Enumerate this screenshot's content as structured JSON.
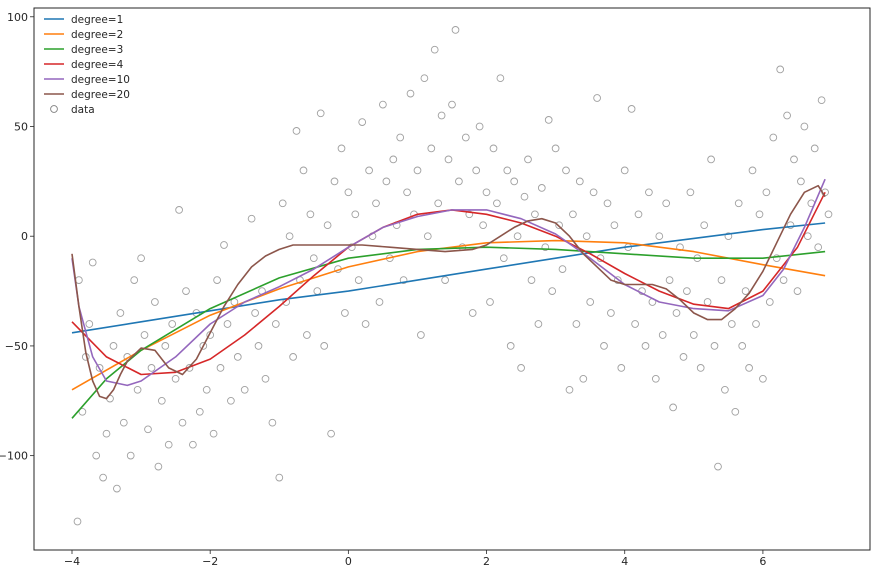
{
  "chart_data": {
    "type": "line",
    "title": "",
    "xlabel": "",
    "ylabel": "",
    "xlim": [
      -4.55,
      7.55
    ],
    "ylim": [
      -143,
      104
    ],
    "x_ticks": [
      -4,
      -2,
      0,
      2,
      4,
      6
    ],
    "y_ticks": [
      -100,
      -50,
      0,
      50,
      100
    ],
    "grid": false,
    "legend_position": "top-left",
    "series": [
      {
        "name": "degree=1",
        "color": "#1f77b4",
        "x": [
          -4,
          -3,
          -2,
          -1,
          0,
          1,
          2,
          3,
          4,
          5,
          6,
          6.9
        ],
        "y": [
          -44,
          -39,
          -34,
          -29,
          -25,
          -20,
          -15,
          -10,
          -5,
          -1,
          3,
          6
        ]
      },
      {
        "name": "degree=2",
        "color": "#ff7f0e",
        "x": [
          -4,
          -3,
          -2,
          -1,
          0,
          1,
          2,
          3,
          4,
          5,
          6,
          6.9
        ],
        "y": [
          -70,
          -52,
          -36,
          -24,
          -14,
          -7,
          -3,
          -2,
          -3,
          -7,
          -13,
          -18
        ]
      },
      {
        "name": "degree=3",
        "color": "#2ca02c",
        "x": [
          -4,
          -3.5,
          -3,
          -2,
          -1,
          0,
          1,
          2,
          3,
          4,
          5,
          6,
          6.9
        ],
        "y": [
          -83,
          -65,
          -52,
          -33,
          -19,
          -10,
          -6,
          -5,
          -6,
          -8,
          -10,
          -10,
          -7
        ]
      },
      {
        "name": "degree=4",
        "color": "#d62728",
        "x": [
          -4,
          -3.5,
          -3,
          -2.5,
          -2,
          -1.5,
          -1,
          -0.5,
          0,
          0.5,
          1,
          1.5,
          2,
          2.5,
          3,
          3.5,
          4,
          4.5,
          5,
          5.5,
          6,
          6.5,
          6.9
        ],
        "y": [
          -39,
          -55,
          -63,
          -62,
          -56,
          -45,
          -32,
          -18,
          -5,
          4,
          10,
          12,
          10,
          6,
          0,
          -8,
          -17,
          -25,
          -31,
          -33,
          -25,
          -5,
          20
        ]
      },
      {
        "name": "degree=10",
        "color": "#9467bd",
        "x": [
          -4,
          -3.9,
          -3.7,
          -3.5,
          -3.2,
          -3,
          -2.5,
          -2,
          -1.5,
          -1,
          -0.5,
          0,
          0.5,
          1,
          1.5,
          2,
          2.5,
          3,
          3.5,
          4,
          4.5,
          5,
          5.5,
          6,
          6.3,
          6.6,
          6.9
        ],
        "y": [
          -10,
          -32,
          -55,
          -66,
          -68,
          -66,
          -55,
          -40,
          -30,
          -23,
          -15,
          -5,
          4,
          9,
          12,
          12,
          8,
          1,
          -10,
          -22,
          -30,
          -33,
          -34,
          -27,
          -15,
          4,
          26
        ]
      },
      {
        "name": "degree=20",
        "color": "#8c564b",
        "x": [
          -4,
          -3.9,
          -3.8,
          -3.7,
          -3.6,
          -3.5,
          -3.4,
          -3.3,
          -3.2,
          -3.0,
          -2.8,
          -2.6,
          -2.4,
          -2.2,
          -2.0,
          -1.8,
          -1.6,
          -1.4,
          -1.2,
          -1.0,
          -0.8,
          -0.5,
          -0.2,
          0.2,
          0.6,
          1.0,
          1.4,
          1.8,
          2.0,
          2.2,
          2.4,
          2.6,
          2.8,
          3.0,
          3.2,
          3.4,
          3.6,
          3.8,
          4.0,
          4.2,
          4.4,
          4.6,
          4.8,
          5.0,
          5.2,
          5.4,
          5.6,
          5.8,
          6.0,
          6.2,
          6.4,
          6.6,
          6.8,
          6.9
        ],
        "y": [
          -8,
          -32,
          -53,
          -66,
          -73,
          -74,
          -70,
          -63,
          -57,
          -51,
          -52,
          -60,
          -63,
          -56,
          -44,
          -32,
          -22,
          -14,
          -9,
          -6,
          -4,
          -4,
          -4,
          -4,
          -5,
          -6,
          -7,
          -6,
          -4,
          0,
          4,
          7,
          8,
          6,
          0,
          -8,
          -14,
          -20,
          -22,
          -22,
          -22,
          -24,
          -29,
          -35,
          -38,
          -38,
          -33,
          -26,
          -16,
          -3,
          10,
          20,
          23,
          18
        ]
      }
    ],
    "scatter": {
      "name": "data",
      "color": "#808080",
      "points": [
        [
          -3.92,
          -130
        ],
        [
          -3.85,
          -80
        ],
        [
          -3.8,
          -55
        ],
        [
          -3.9,
          -20
        ],
        [
          -3.75,
          -40
        ],
        [
          -3.7,
          -12
        ],
        [
          -3.65,
          -100
        ],
        [
          -3.6,
          -60
        ],
        [
          -3.55,
          -110
        ],
        [
          -3.5,
          -90
        ],
        [
          -3.45,
          -74
        ],
        [
          -3.4,
          -50
        ],
        [
          -3.35,
          -115
        ],
        [
          -3.3,
          -35
        ],
        [
          -3.25,
          -85
        ],
        [
          -3.2,
          -55
        ],
        [
          -3.15,
          -100
        ],
        [
          -3.1,
          -20
        ],
        [
          -3.05,
          -70
        ],
        [
          -3.0,
          -10
        ],
        [
          -2.95,
          -45
        ],
        [
          -2.9,
          -88
        ],
        [
          -2.85,
          -60
        ],
        [
          -2.8,
          -30
        ],
        [
          -2.75,
          -105
        ],
        [
          -2.7,
          -75
        ],
        [
          -2.65,
          -50
        ],
        [
          -2.6,
          -95
        ],
        [
          -2.55,
          -40
        ],
        [
          -2.5,
          -65
        ],
        [
          -2.45,
          12
        ],
        [
          -2.4,
          -85
        ],
        [
          -2.35,
          -25
        ],
        [
          -2.3,
          -60
        ],
        [
          -2.25,
          -95
        ],
        [
          -2.2,
          -35
        ],
        [
          -2.15,
          -80
        ],
        [
          -2.1,
          -50
        ],
        [
          -2.05,
          -70
        ],
        [
          -2.0,
          -45
        ],
        [
          -1.95,
          -90
        ],
        [
          -1.9,
          -20
        ],
        [
          -1.85,
          -60
        ],
        [
          -1.8,
          -4
        ],
        [
          -1.75,
          -40
        ],
        [
          -1.7,
          -75
        ],
        [
          -1.65,
          -30
        ],
        [
          -1.6,
          -55
        ],
        [
          -1.5,
          -70
        ],
        [
          -1.4,
          8
        ],
        [
          -1.35,
          -35
        ],
        [
          -1.3,
          -50
        ],
        [
          -1.25,
          -25
        ],
        [
          -1.2,
          -65
        ],
        [
          -1.1,
          -85
        ],
        [
          -1.05,
          -40
        ],
        [
          -1.0,
          -110
        ],
        [
          -0.95,
          15
        ],
        [
          -0.9,
          -30
        ],
        [
          -0.85,
          0
        ],
        [
          -0.8,
          -55
        ],
        [
          -0.75,
          48
        ],
        [
          -0.7,
          -20
        ],
        [
          -0.65,
          30
        ],
        [
          -0.6,
          -45
        ],
        [
          -0.55,
          10
        ],
        [
          -0.5,
          -10
        ],
        [
          -0.45,
          -25
        ],
        [
          -0.4,
          56
        ],
        [
          -0.35,
          -50
        ],
        [
          -0.3,
          5
        ],
        [
          -0.25,
          -90
        ],
        [
          -0.2,
          25
        ],
        [
          -0.15,
          -15
        ],
        [
          -0.1,
          40
        ],
        [
          -0.05,
          -35
        ],
        [
          0.0,
          20
        ],
        [
          0.05,
          -5
        ],
        [
          0.1,
          10
        ],
        [
          0.15,
          -20
        ],
        [
          0.2,
          52
        ],
        [
          0.25,
          -40
        ],
        [
          0.3,
          30
        ],
        [
          0.35,
          0
        ],
        [
          0.4,
          15
        ],
        [
          0.45,
          -30
        ],
        [
          0.5,
          60
        ],
        [
          0.55,
          25
        ],
        [
          0.6,
          -10
        ],
        [
          0.65,
          35
        ],
        [
          0.7,
          5
        ],
        [
          0.75,
          45
        ],
        [
          0.8,
          -20
        ],
        [
          0.85,
          20
        ],
        [
          0.9,
          65
        ],
        [
          0.95,
          10
        ],
        [
          1.0,
          30
        ],
        [
          1.05,
          -45
        ],
        [
          1.1,
          72
        ],
        [
          1.15,
          0
        ],
        [
          1.2,
          40
        ],
        [
          1.25,
          85
        ],
        [
          1.3,
          15
        ],
        [
          1.35,
          55
        ],
        [
          1.4,
          -20
        ],
        [
          1.45,
          35
        ],
        [
          1.5,
          60
        ],
        [
          1.55,
          94
        ],
        [
          1.6,
          25
        ],
        [
          1.65,
          -5
        ],
        [
          1.7,
          45
        ],
        [
          1.75,
          10
        ],
        [
          1.8,
          -35
        ],
        [
          1.85,
          30
        ],
        [
          1.9,
          50
        ],
        [
          1.95,
          5
        ],
        [
          2.0,
          20
        ],
        [
          2.05,
          -30
        ],
        [
          2.1,
          40
        ],
        [
          2.15,
          15
        ],
        [
          2.2,
          72
        ],
        [
          2.25,
          -10
        ],
        [
          2.3,
          30
        ],
        [
          2.35,
          -50
        ],
        [
          2.4,
          25
        ],
        [
          2.45,
          0
        ],
        [
          2.5,
          -60
        ],
        [
          2.55,
          18
        ],
        [
          2.6,
          35
        ],
        [
          2.65,
          -20
        ],
        [
          2.7,
          10
        ],
        [
          2.75,
          -40
        ],
        [
          2.8,
          22
        ],
        [
          2.85,
          -5
        ],
        [
          2.9,
          53
        ],
        [
          2.95,
          -25
        ],
        [
          3.0,
          40
        ],
        [
          3.05,
          5
        ],
        [
          3.1,
          -15
        ],
        [
          3.15,
          30
        ],
        [
          3.2,
          -70
        ],
        [
          3.25,
          10
        ],
        [
          3.3,
          -40
        ],
        [
          3.35,
          25
        ],
        [
          3.4,
          -65
        ],
        [
          3.45,
          0
        ],
        [
          3.5,
          -30
        ],
        [
          3.55,
          20
        ],
        [
          3.6,
          63
        ],
        [
          3.65,
          -10
        ],
        [
          3.7,
          -50
        ],
        [
          3.75,
          15
        ],
        [
          3.8,
          -35
        ],
        [
          3.85,
          5
        ],
        [
          3.9,
          -20
        ],
        [
          3.95,
          -60
        ],
        [
          4.0,
          30
        ],
        [
          4.05,
          -5
        ],
        [
          4.1,
          58
        ],
        [
          4.15,
          -40
        ],
        [
          4.2,
          10
        ],
        [
          4.25,
          -25
        ],
        [
          4.3,
          -50
        ],
        [
          4.35,
          20
        ],
        [
          4.4,
          -30
        ],
        [
          4.45,
          -65
        ],
        [
          4.5,
          0
        ],
        [
          4.55,
          -45
        ],
        [
          4.6,
          15
        ],
        [
          4.65,
          -20
        ],
        [
          4.7,
          -78
        ],
        [
          4.75,
          -35
        ],
        [
          4.8,
          -5
        ],
        [
          4.85,
          -55
        ],
        [
          4.9,
          -25
        ],
        [
          4.95,
          20
        ],
        [
          5.0,
          -45
        ],
        [
          5.05,
          -10
        ],
        [
          5.1,
          -60
        ],
        [
          5.15,
          5
        ],
        [
          5.2,
          -30
        ],
        [
          5.25,
          35
        ],
        [
          5.3,
          -50
        ],
        [
          5.35,
          -105
        ],
        [
          5.4,
          -20
        ],
        [
          5.45,
          -70
        ],
        [
          5.5,
          0
        ],
        [
          5.55,
          -40
        ],
        [
          5.6,
          -80
        ],
        [
          5.65,
          15
        ],
        [
          5.7,
          -50
        ],
        [
          5.75,
          -25
        ],
        [
          5.8,
          -60
        ],
        [
          5.85,
          30
        ],
        [
          5.9,
          -40
        ],
        [
          5.95,
          10
        ],
        [
          6.0,
          -65
        ],
        [
          6.05,
          20
        ],
        [
          6.1,
          -30
        ],
        [
          6.15,
          45
        ],
        [
          6.2,
          -10
        ],
        [
          6.25,
          76
        ],
        [
          6.3,
          -20
        ],
        [
          6.35,
          55
        ],
        [
          6.4,
          5
        ],
        [
          6.45,
          35
        ],
        [
          6.5,
          -25
        ],
        [
          6.55,
          25
        ],
        [
          6.6,
          50
        ],
        [
          6.65,
          0
        ],
        [
          6.7,
          15
        ],
        [
          6.75,
          40
        ],
        [
          6.8,
          -5
        ],
        [
          6.85,
          62
        ],
        [
          6.9,
          20
        ],
        [
          6.95,
          10
        ]
      ]
    }
  }
}
